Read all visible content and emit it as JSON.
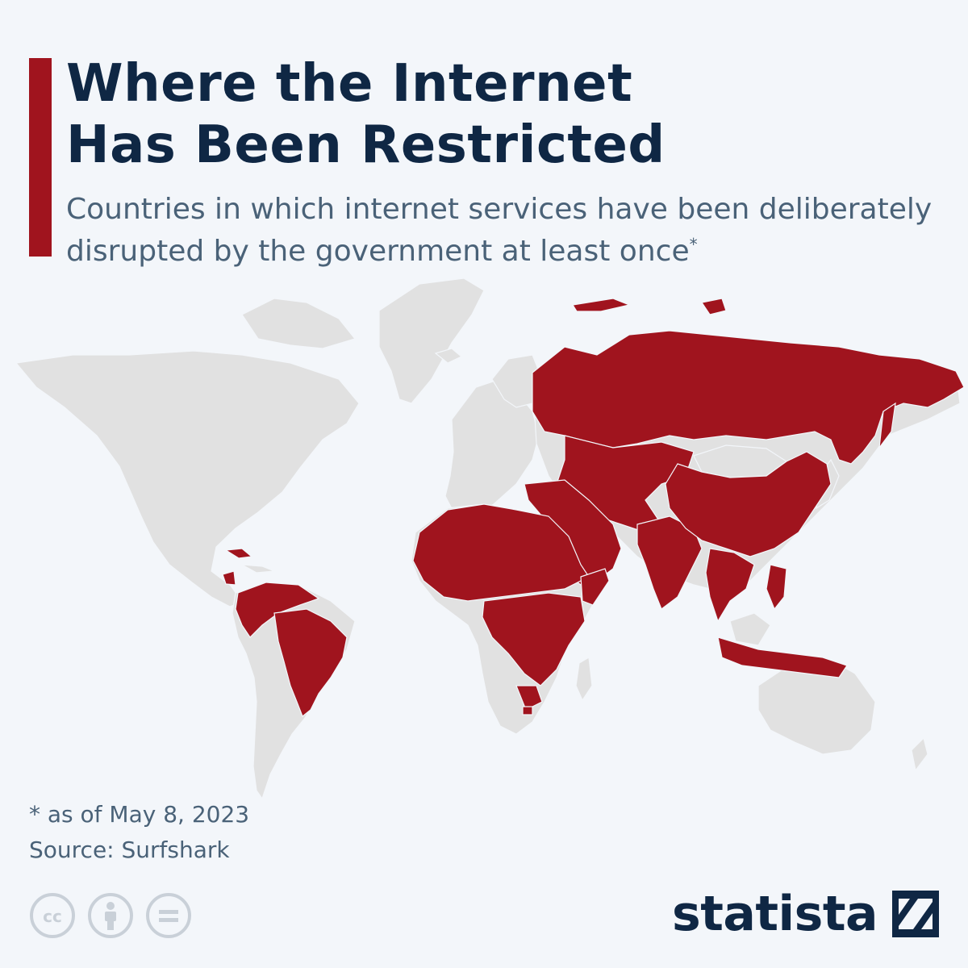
{
  "title": {
    "line1": "Where the Internet",
    "line2": "Has Been Restricted"
  },
  "subtitle": {
    "line1": "Countries in which internet services have been deliberately",
    "line2": "disrupted by the government at least once",
    "marker": "*"
  },
  "map": {
    "highlight_color": "#a0141e",
    "base_color": "#e1e1e1",
    "background": "#f3f6fa",
    "highlighted_regions": [
      "Russia",
      "China",
      "India",
      "Brazil",
      "Venezuela",
      "Colombia",
      "Ecuador",
      "Peru",
      "Cuba",
      "Nicaragua",
      "Turkey",
      "Iran",
      "Iraq",
      "Syria",
      "Saudi Arabia",
      "Yemen",
      "Egypt",
      "Libya",
      "Algeria",
      "Sudan",
      "Ethiopia",
      "Somalia",
      "Kenya",
      "Nigeria",
      "Mali",
      "Niger",
      "Chad",
      "Cameroon",
      "DR Congo",
      "Tanzania",
      "Zimbabwe",
      "Indonesia",
      "Philippines",
      "Myanmar",
      "Thailand",
      "Malaysia",
      "Pakistan",
      "Afghanistan",
      "Kazakhstan",
      "Uzbekistan",
      "Vietnam",
      "Bangladesh",
      "Papua New Guinea"
    ]
  },
  "footnote": {
    "note": "* as of May 8, 2023",
    "source": "Source: Surfshark"
  },
  "license_icons": [
    "creative-commons-icon",
    "attribution-icon",
    "no-derivatives-icon"
  ],
  "brand": {
    "name": "statista"
  }
}
